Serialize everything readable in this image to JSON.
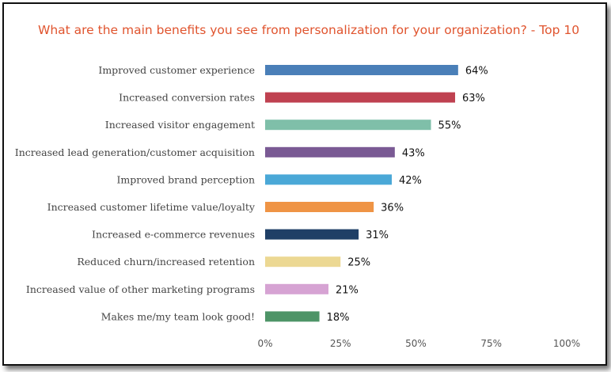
{
  "chart_data": {
    "type": "bar",
    "orientation": "horizontal",
    "title": "What are the main benefits you see from personalization for your organization? - Top 10",
    "categories": [
      "Improved customer experience",
      "Increased conversion rates",
      "Increased visitor engagement",
      "Increased lead generation/customer acquisition",
      "Improved brand perception",
      "Increased customer lifetime value/loyalty",
      "Increased e-commerce revenues",
      "Reduced churn/increased retention",
      "Increased value of other marketing programs",
      "Makes me/my team look good!"
    ],
    "values": [
      64,
      63,
      55,
      43,
      42,
      36,
      31,
      25,
      21,
      18
    ],
    "value_labels": [
      "64%",
      "63%",
      "55%",
      "43%",
      "42%",
      "36%",
      "31%",
      "25%",
      "21%",
      "18%"
    ],
    "colors": [
      "#4a7fb8",
      "#bf4150",
      "#7fbfa9",
      "#7a5a94",
      "#4aa8d7",
      "#ef9445",
      "#1f3f66",
      "#ecd893",
      "#d6a3d3",
      "#4e9467"
    ],
    "xlim": [
      0,
      100
    ],
    "xticks": [
      "0%",
      "25%",
      "50%",
      "75%",
      "100%"
    ],
    "xtick_values": [
      0,
      25,
      50,
      75,
      100
    ],
    "grid": false,
    "legend": "none"
  }
}
